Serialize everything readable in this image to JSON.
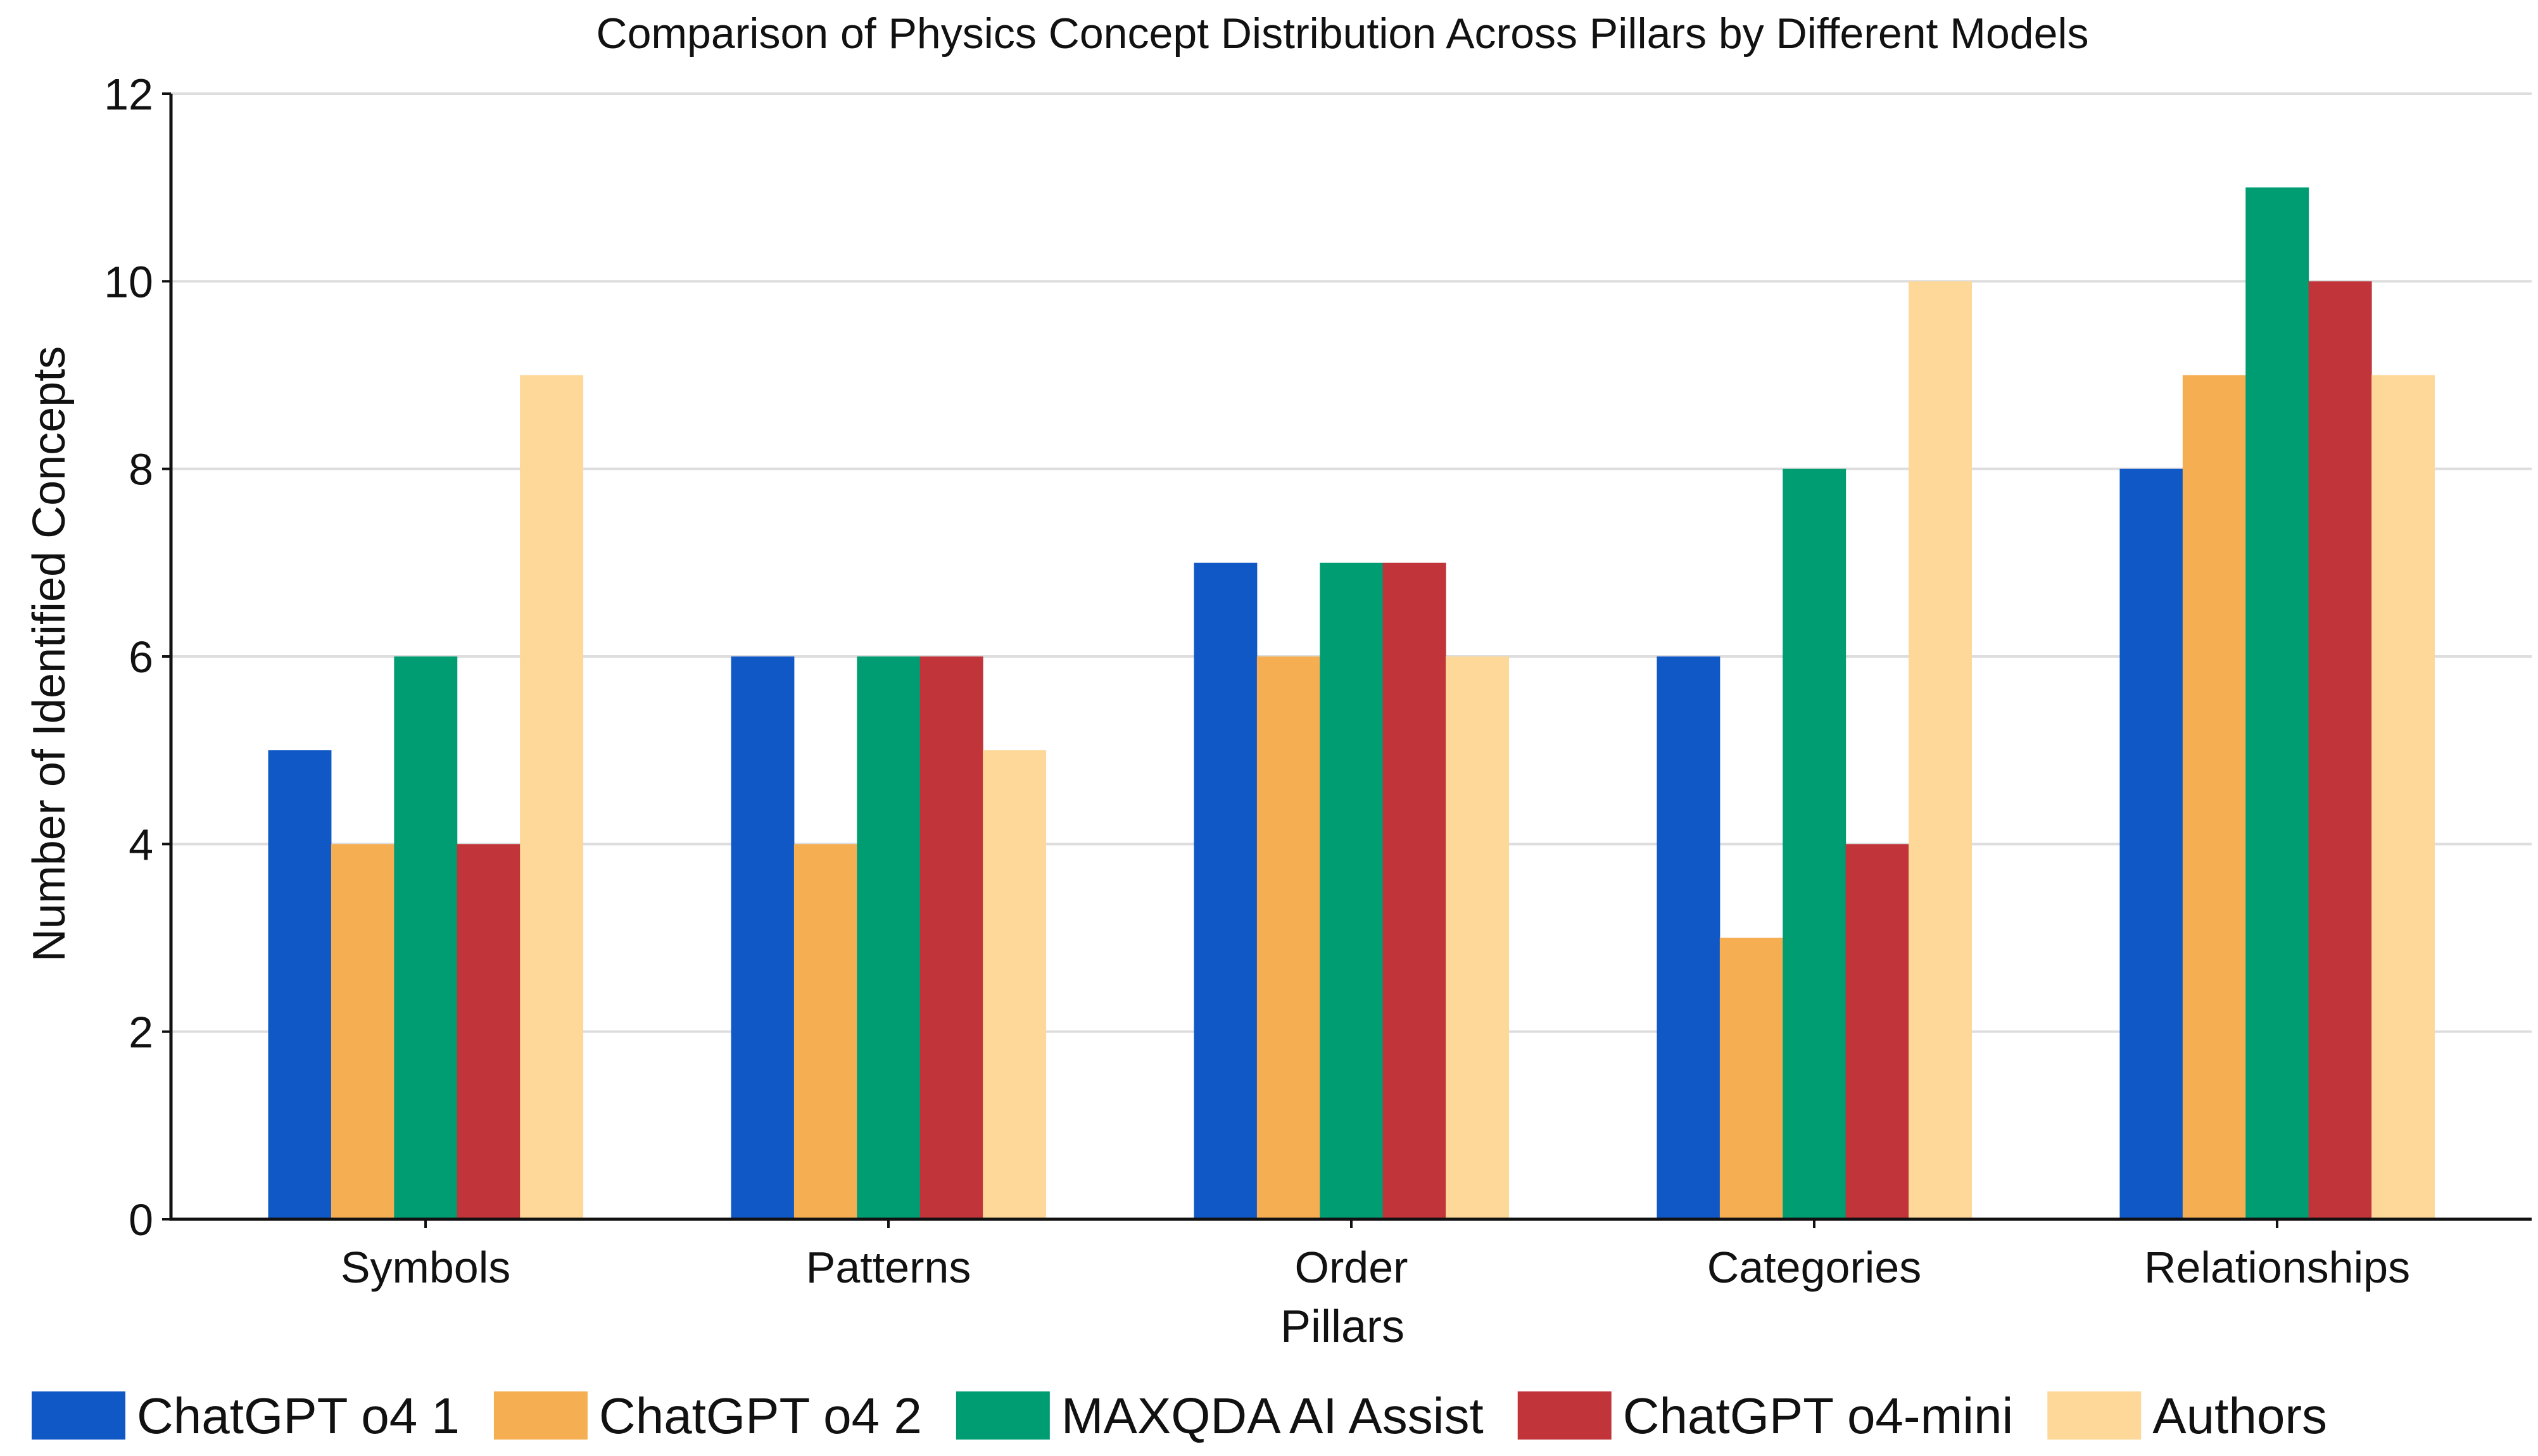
{
  "chart_data": {
    "type": "bar",
    "title": "Comparison of Physics Concept Distribution Across Pillars by Different Models",
    "xlabel": "Pillars",
    "ylabel": "Number of Identified Concepts",
    "categories": [
      "Symbols",
      "Patterns",
      "Order",
      "Categories",
      "Relationships"
    ],
    "ylim": [
      0,
      12
    ],
    "yticks": [
      0,
      2,
      4,
      6,
      8,
      10,
      12
    ],
    "grid": true,
    "legend_position": "bottom",
    "series": [
      {
        "name": "ChatGPT o4 1",
        "color": "#1158c7",
        "values": [
          5,
          6,
          7,
          6,
          8
        ]
      },
      {
        "name": "ChatGPT o4 2",
        "color": "#f5af52",
        "values": [
          4,
          4,
          6,
          3,
          9
        ]
      },
      {
        "name": "MAXQDA AI Assist",
        "color": "#009c72",
        "values": [
          6,
          6,
          7,
          8,
          11
        ]
      },
      {
        "name": "ChatGPT o4-mini",
        "color": "#c0343a",
        "values": [
          4,
          6,
          7,
          4,
          10
        ]
      },
      {
        "name": "Authors",
        "color": "#fdd898",
        "values": [
          9,
          5,
          6,
          10,
          9
        ]
      }
    ]
  }
}
